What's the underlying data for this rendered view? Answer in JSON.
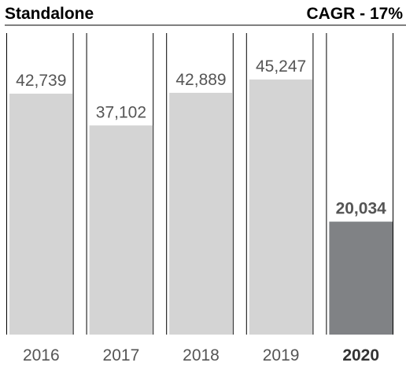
{
  "chart_data": {
    "type": "bar",
    "title": "Standalone",
    "subtitle": "CAGR - 17%",
    "categories": [
      "2016",
      "2017",
      "2018",
      "2019",
      "2020"
    ],
    "values": [
      42739,
      37102,
      42889,
      45247,
      20034
    ],
    "value_labels": [
      "42,739",
      "37,102",
      "42,889",
      "45,247",
      "20,034"
    ],
    "colors": [
      "#d4d4d4",
      "#d4d4d4",
      "#d4d4d4",
      "#d4d4d4",
      "#808285"
    ],
    "highlight": "2020"
  }
}
